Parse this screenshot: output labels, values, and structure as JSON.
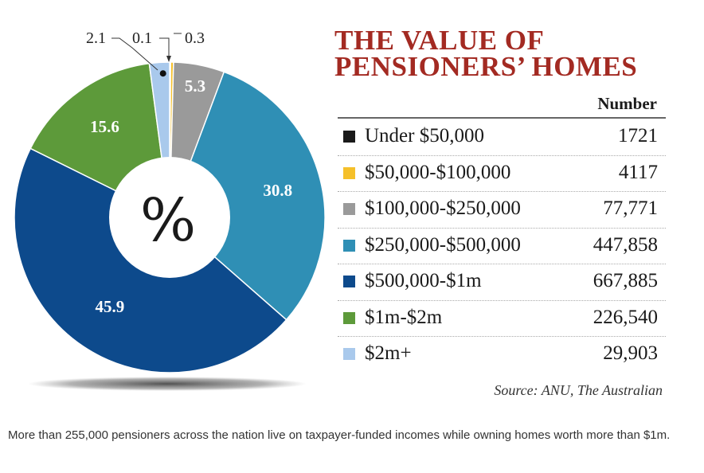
{
  "chart_data": {
    "type": "pie",
    "title": "THE VALUE OF PENSIONERS' HOMES",
    "title_lines": [
      "THE VALUE OF",
      "PENSIONERS’ HOMES"
    ],
    "center_label": "%",
    "value_column_header": "Number",
    "source": "Source: ANU, The Australian",
    "categories": [
      "Under $50,000",
      "$50,000-$100,000",
      "$100,000-$250,000",
      "$250,000-$500,000",
      "$500,000-$1m",
      "$1m-$2m",
      "$2m+"
    ],
    "percent_labels": [
      "0.1",
      "0.3",
      "5.3",
      "30.8",
      "45.9",
      "15.6",
      "2.1"
    ],
    "percent_values": [
      0.1,
      0.3,
      5.3,
      30.8,
      45.9,
      15.6,
      2.1
    ],
    "numbers": [
      "1721",
      "4117",
      "77,771",
      "447,858",
      "667,885",
      "226,540",
      "29,903"
    ],
    "colors": [
      "#1a1a1a",
      "#f5c02a",
      "#9a9a9a",
      "#2f8fb5",
      "#0d4a8c",
      "#5d9a3a",
      "#a9c9ec"
    ]
  },
  "caption": "More than 255,000 pensioners across the nation live on taxpayer-funded incomes while owning homes worth more than $1m."
}
